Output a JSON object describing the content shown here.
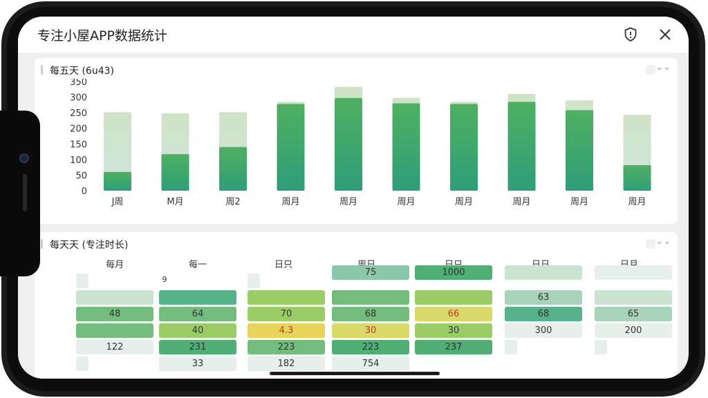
{
  "app": {
    "title": "专注小屋APP数据统计",
    "icons": {
      "alert": "alert-shield-icon",
      "close": "close-icon"
    }
  },
  "card1": {
    "title": "每五天 (6u43)",
    "chart_data": {
      "type": "bar",
      "categories": [
        "J周",
        "M月",
        "周2",
        "周月",
        "周月",
        "周月",
        "周月",
        "周月",
        "周月",
        "周月"
      ],
      "series": [
        {
          "values": [
            60,
            117,
            140,
            278,
            297,
            280,
            278,
            285,
            258,
            82
          ]
        },
        {
          "values": [
            252,
            248,
            252,
            285,
            333,
            298,
            285,
            310,
            290,
            243
          ]
        }
      ],
      "yticks": [
        0,
        50,
        100,
        150,
        200,
        250,
        300,
        350
      ],
      "ylim": [
        0,
        350
      ],
      "grid": false,
      "colors": {
        "solid": "#3aa36a",
        "ghost": "#c5dfc2"
      }
    }
  },
  "card2": {
    "title": "每天天 (专注时长)",
    "columns": [
      "每月",
      "每一",
      "日只",
      "周日",
      "日只",
      "日日",
      "日月"
    ],
    "values": {
      "c1": [
        "48",
        "122"
      ],
      "c2": [
        "64",
        "40",
        "231",
        "33"
      ],
      "c3": [
        "70",
        "4.3",
        "223",
        "182"
      ],
      "c4": [
        "75",
        "68",
        "30",
        "223",
        "754"
      ],
      "c5": [
        "1000",
        "66",
        "30",
        "237"
      ],
      "c6": [
        "63",
        "68",
        "300"
      ],
      "c7": [
        "65",
        "200"
      ]
    },
    "misc": {
      "tiny_mark": "9"
    }
  }
}
